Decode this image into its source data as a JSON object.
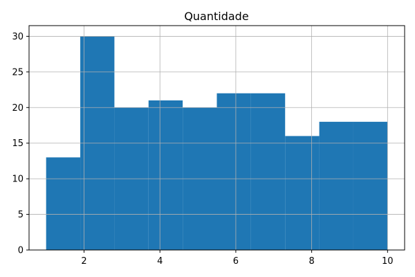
{
  "chart_data": {
    "type": "bar",
    "title": "Quantidade",
    "xlabel": "",
    "ylabel": "",
    "xlim": [
      0.55,
      10.45
    ],
    "ylim": [
      0,
      31.5
    ],
    "grid": true,
    "bar_color": "#1f77b4",
    "grid_color": "#b0b0b0",
    "bins": [
      {
        "start": 1.0,
        "end": 1.9,
        "count": 13
      },
      {
        "start": 1.9,
        "end": 2.8,
        "count": 30
      },
      {
        "start": 2.8,
        "end": 3.7,
        "count": 20
      },
      {
        "start": 3.7,
        "end": 4.6,
        "count": 21
      },
      {
        "start": 4.6,
        "end": 5.5,
        "count": 20
      },
      {
        "start": 5.5,
        "end": 6.4,
        "count": 22
      },
      {
        "start": 6.4,
        "end": 7.3,
        "count": 22
      },
      {
        "start": 7.3,
        "end": 8.2,
        "count": 16
      },
      {
        "start": 8.2,
        "end": 9.1,
        "count": 18
      },
      {
        "start": 9.1,
        "end": 10.0,
        "count": 18
      }
    ],
    "x_ticks": [
      2,
      4,
      6,
      8,
      10
    ],
    "y_ticks": [
      0,
      5,
      10,
      15,
      20,
      25,
      30
    ]
  }
}
